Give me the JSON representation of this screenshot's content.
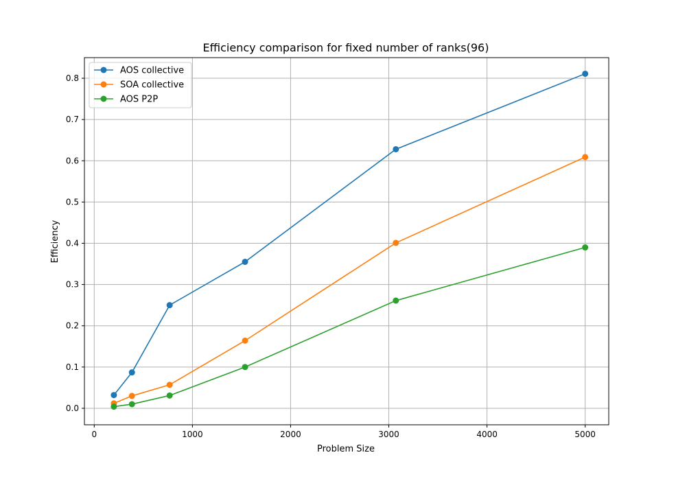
{
  "chart_data": {
    "type": "line",
    "title": "Efficiency comparison for fixed number of ranks(96)",
    "xlabel": "Problem Size",
    "ylabel": "Efficiency",
    "xlim": [
      -100,
      5240
    ],
    "ylim": [
      -0.04,
      0.85
    ],
    "xticks": [
      0,
      1000,
      2000,
      3000,
      4000,
      5000
    ],
    "yticks": [
      0.0,
      0.1,
      0.2,
      0.3,
      0.4,
      0.5,
      0.6,
      0.7,
      0.8
    ],
    "ytick_labels": [
      "0.0",
      "0.1",
      "0.2",
      "0.3",
      "0.4",
      "0.5",
      "0.6",
      "0.7",
      "0.8"
    ],
    "grid": true,
    "legend_position": "top-left",
    "x": [
      200,
      384,
      768,
      1536,
      3072,
      5000
    ],
    "series": [
      {
        "name": "AOS collective",
        "color": "#1f77b4",
        "values": [
          0.032,
          0.087,
          0.25,
          0.355,
          0.628,
          0.811
        ]
      },
      {
        "name": "SOA collective",
        "color": "#ff7f0e",
        "values": [
          0.012,
          0.03,
          0.057,
          0.164,
          0.401,
          0.609
        ]
      },
      {
        "name": "AOS P2P",
        "color": "#2ca02c",
        "values": [
          0.004,
          0.01,
          0.031,
          0.1,
          0.261,
          0.39
        ]
      }
    ]
  }
}
